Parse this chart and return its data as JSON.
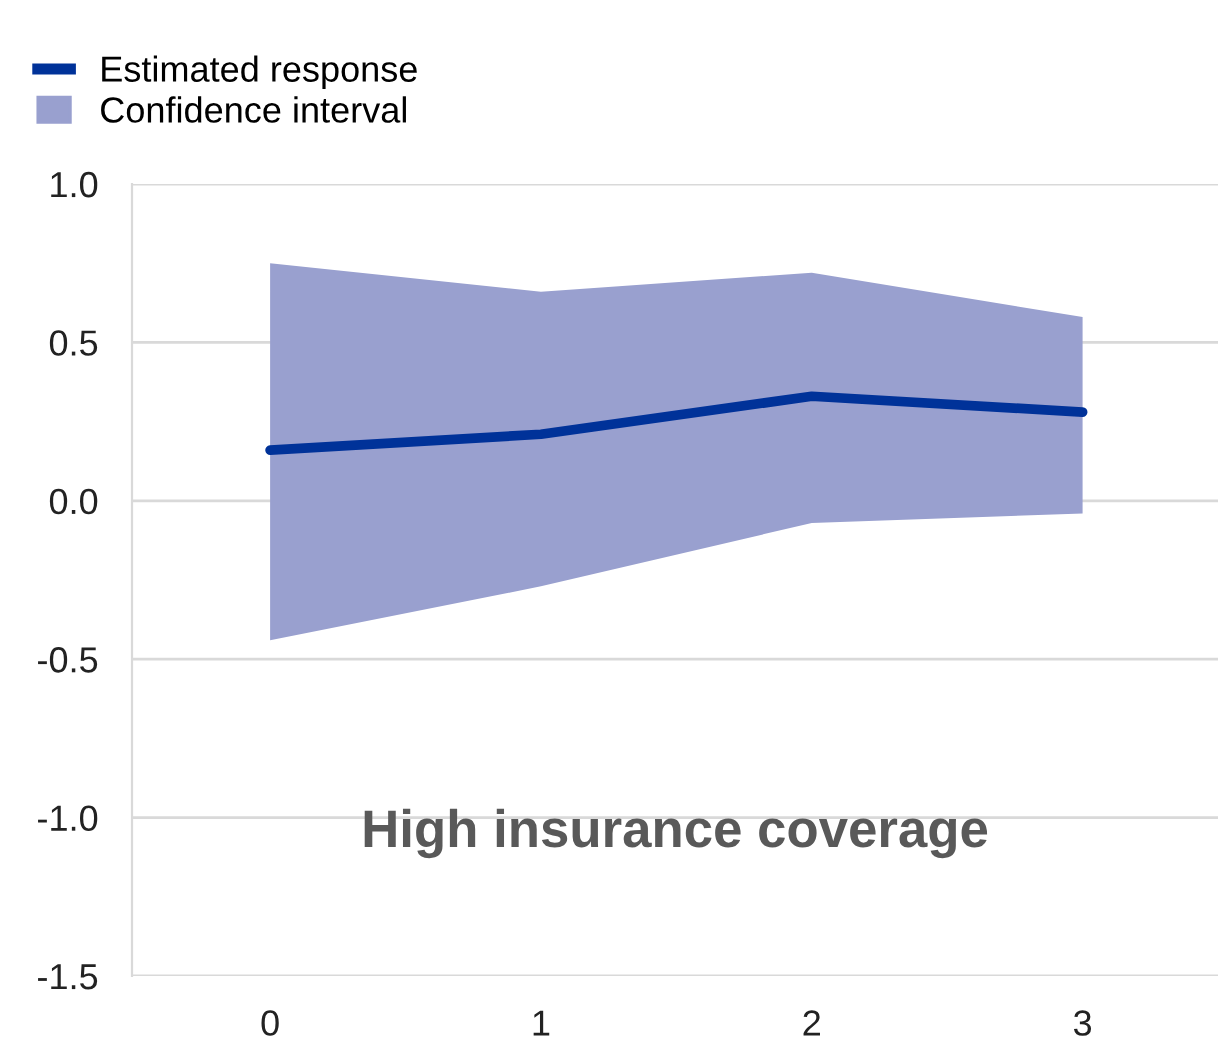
{
  "chart_data": {
    "type": "line",
    "categories": [
      "0",
      "1",
      "2",
      "3"
    ],
    "series": [
      {
        "name": "Estimated response",
        "color": "#003299",
        "values": [
          0.16,
          0.21,
          0.33,
          0.28
        ]
      },
      {
        "name": "Confidence interval",
        "type": "area",
        "color": "#99a0cf",
        "values": [
          null,
          null,
          null,
          null
        ],
        "lower": [
          -0.44,
          -0.27,
          -0.07,
          -0.04
        ],
        "upper": [
          0.75,
          0.66,
          0.72,
          0.58
        ]
      }
    ],
    "ylim": [
      -1.5,
      1.0
    ],
    "yticks": [
      {
        "value": -1.5,
        "label": "-1.5"
      },
      {
        "value": -1.0,
        "label": "-1.0"
      },
      {
        "value": -0.5,
        "label": "-0.5"
      },
      {
        "value": 0,
        "label": "0.0"
      },
      {
        "value": 0.5,
        "label": "0.5"
      },
      {
        "value": 1.0,
        "label": "1.0"
      }
    ],
    "grid": "y",
    "legend": "top left",
    "annotations": [
      {
        "text": "High insurance coverage"
      }
    ]
  }
}
